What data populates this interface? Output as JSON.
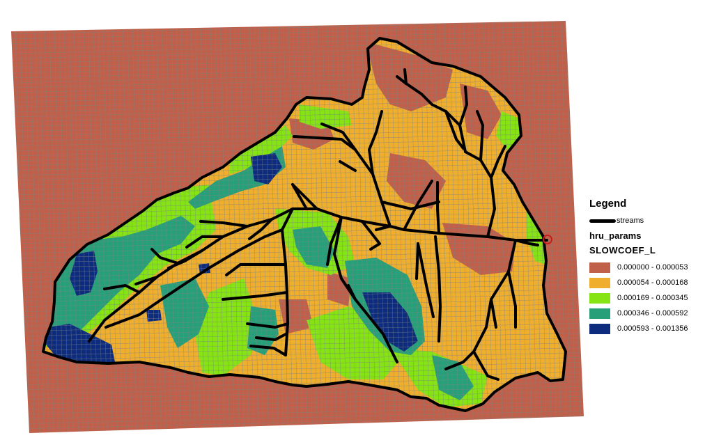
{
  "legend": {
    "title": "Legend",
    "streams_label": "streams",
    "layer_name": "hru_params",
    "field_name": "SLOWCOEF_L",
    "classes": [
      {
        "label": "0.000000 - 0.000053",
        "color": "#C0604A"
      },
      {
        "label": "0.000054 - 0.000168",
        "color": "#EFAE2E"
      },
      {
        "label": "0.000169 - 0.000345",
        "color": "#86E314"
      },
      {
        "label": "0.000346 - 0.000592",
        "color": "#27A07A"
      },
      {
        "label": "0.000593 - 0.001356",
        "color": "#0E2C7E"
      }
    ]
  },
  "colors": {
    "grid_line": "#7C8482",
    "stream": "#000000",
    "outlet_marker": "#C41E1E"
  }
}
